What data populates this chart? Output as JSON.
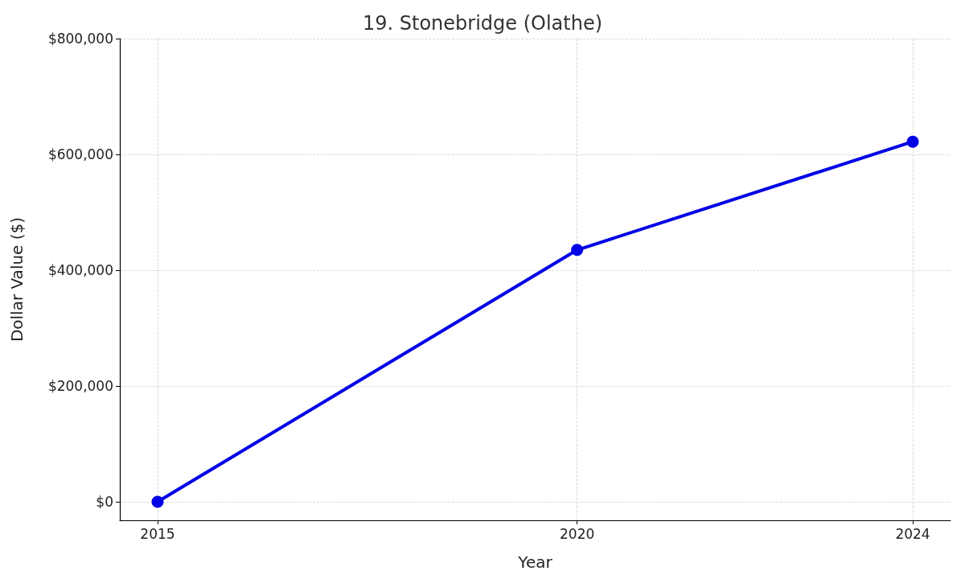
{
  "chart_data": {
    "type": "line",
    "title": "19. Stonebridge (Olathe)",
    "xlabel": "Year",
    "ylabel": "Dollar Value ($)",
    "x": [
      2015,
      2020,
      2024
    ],
    "series": [
      {
        "color": "#0000e6",
        "values": [
          0,
          435000,
          622000
        ]
      }
    ],
    "xlim": [
      2014.55,
      2024.45
    ],
    "xticks": [
      2015,
      2020,
      2024
    ],
    "ylim": [
      -32000,
      800000
    ],
    "yticks": [
      {
        "value": 0,
        "label": "$0"
      },
      {
        "value": 200000,
        "label": "$200,000"
      },
      {
        "value": 400000,
        "label": "$400,000"
      },
      {
        "value": 600000,
        "label": "$600,000"
      },
      {
        "value": 800000,
        "label": "$800,000"
      }
    ],
    "grid": true,
    "marker": "circle",
    "line_style": "solid"
  }
}
